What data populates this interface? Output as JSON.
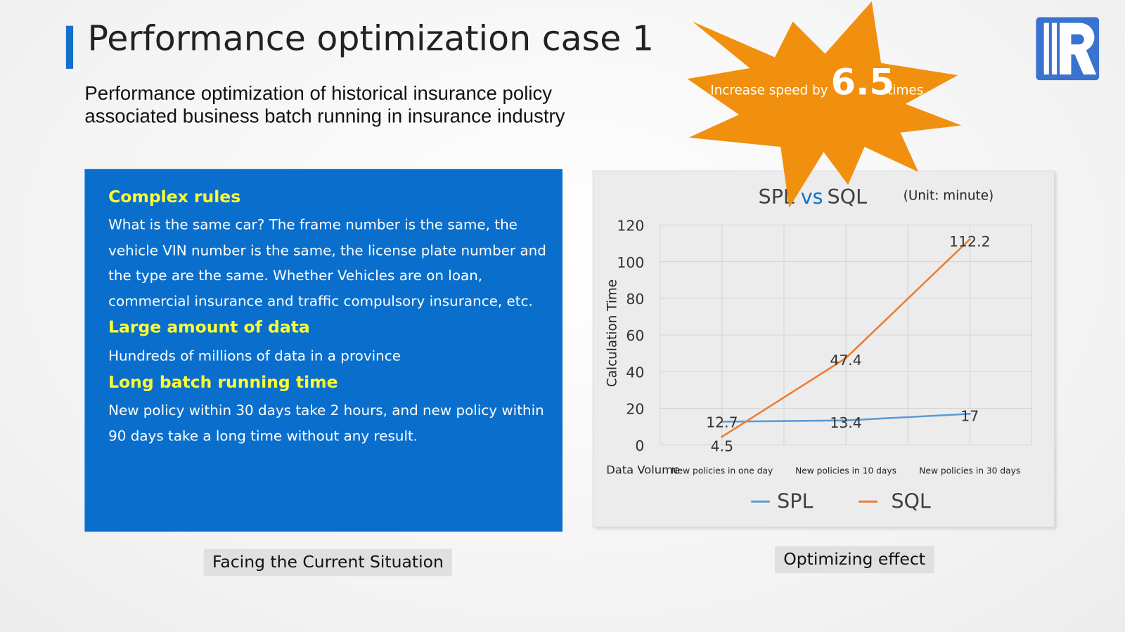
{
  "header": {
    "title": "Performance optimization case 1",
    "subtitle": "Performance optimization of historical insurance policy associated business batch running in insurance industry"
  },
  "panel": {
    "sections": [
      {
        "heading": "Complex rules",
        "text": "What is the same car? The frame number is the same, the vehicle VIN number is the same, the license plate number and the type are the same. Whether Vehicles are on loan, commercial insurance and traffic compulsory insurance, etc."
      },
      {
        "heading": "Large amount of data",
        "text": "Hundreds of millions of data in a province"
      },
      {
        "heading": "Long batch running time",
        "text": "New policy within 30 days take 2 hours, and new policy within 90 days take a long time without any result."
      }
    ],
    "caption": "Facing the Current Situation"
  },
  "burst": {
    "prefix": "Increase speed by",
    "value": "6.5",
    "suffix": "times",
    "color": "#f0900e"
  },
  "logo": {
    "color": "#3a72d0"
  },
  "chart_caption": "Optimizing effect",
  "chart_data": {
    "type": "line",
    "title_left": "SPL",
    "title_vs": "vs",
    "title_right": "SQL",
    "unit": "(Unit:  minute)",
    "xlabel": "Data Volume",
    "ylabel": "Calculation Time",
    "categories": [
      "New policies in one day",
      "New policies in 10 days",
      "New policies in 30 days"
    ],
    "ylim": [
      0,
      120
    ],
    "yticks": [
      0,
      20,
      40,
      60,
      80,
      100,
      120
    ],
    "grid": true,
    "legend_position": "bottom",
    "series": [
      {
        "name": "SPL",
        "color": "#5b9bd5",
        "values": [
          12.7,
          13.4,
          17
        ],
        "labels": [
          "12.7",
          "13.4",
          "17"
        ]
      },
      {
        "name": "SQL",
        "color": "#ed7d31",
        "values": [
          4.5,
          47.4,
          112.2
        ],
        "labels": [
          "4.5",
          "47.4",
          "112.2"
        ]
      }
    ]
  }
}
